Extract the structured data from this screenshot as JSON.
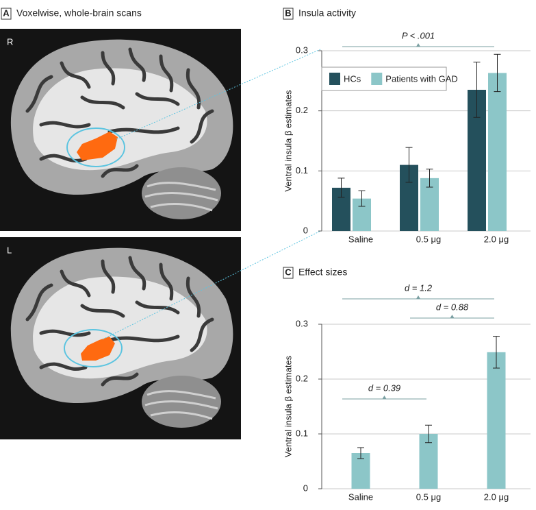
{
  "panel_a": {
    "panel_label": "A",
    "title": "Voxelwise, whole-brain scans",
    "image_labels": [
      "R",
      "L"
    ]
  },
  "chart_data": [
    {
      "type": "bar",
      "panel_label": "B",
      "title": "Insula activity",
      "y_label": "Ventral insula β estimates",
      "categories": [
        "Saline",
        "0.5 μg",
        "2.0 μg"
      ],
      "series": [
        {
          "name": "HCs",
          "color": "#24505c",
          "values": [
            0.072,
            0.11,
            0.235
          ],
          "errors": [
            0.016,
            0.029,
            0.046
          ]
        },
        {
          "name": "Patients with GAD",
          "color": "#8cc6c8",
          "values": [
            0.054,
            0.088,
            0.263
          ],
          "errors": [
            0.013,
            0.015,
            0.031
          ]
        }
      ],
      "annotations": [
        "P < .001"
      ],
      "ylim": [
        0,
        0.3
      ],
      "yticks": [
        0,
        0.1,
        0.2,
        0.3
      ],
      "grid": true,
      "legend": "upper left"
    },
    {
      "type": "bar",
      "panel_label": "C",
      "title": "Effect sizes",
      "y_label": "Ventral insula β estimates",
      "categories": [
        "Saline",
        "0.5 μg",
        "2.0 μg"
      ],
      "values": [
        0.065,
        0.1,
        0.249
      ],
      "errors": [
        0.01,
        0.016,
        0.029
      ],
      "color": "#8cc6c8",
      "annotations": [
        "d = 1.2",
        "d = 0.88",
        "d = 0.39"
      ],
      "ylim": [
        0,
        0.3
      ],
      "yticks": [
        0,
        0.1,
        0.2,
        0.3
      ],
      "grid": true
    }
  ]
}
